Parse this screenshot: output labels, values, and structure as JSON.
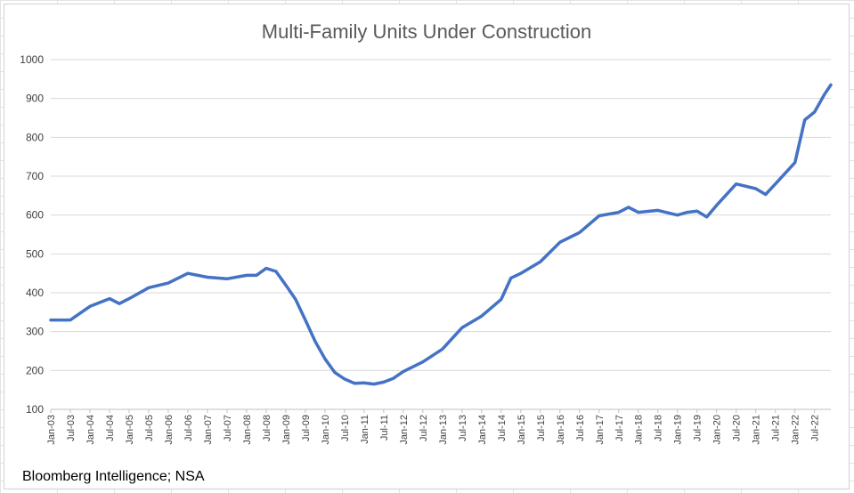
{
  "chart_data": {
    "type": "line",
    "title": "Multi-Family Units Under Construction",
    "xlabel": "",
    "ylabel": "",
    "ylim": [
      100,
      1000
    ],
    "yticks": [
      100,
      200,
      300,
      400,
      500,
      600,
      700,
      800,
      900,
      1000
    ],
    "xlim": [
      "2003-01",
      "2022-12"
    ],
    "xticks": [
      "Jan-03",
      "Jul-03",
      "Jan-04",
      "Jul-04",
      "Jan-05",
      "Jul-05",
      "Jan-06",
      "Jul-06",
      "Jan-07",
      "Jul-07",
      "Jan-08",
      "Jul-08",
      "Jan-09",
      "Jul-09",
      "Jan-10",
      "Jul-10",
      "Jan-11",
      "Jul-11",
      "Jan-12",
      "Jul-12",
      "Jan-13",
      "Jul-13",
      "Jan-14",
      "Jul-14",
      "Jan-15",
      "Jul-15",
      "Jan-16",
      "Jul-16",
      "Jan-17",
      "Jul-17",
      "Jan-18",
      "Jul-18",
      "Jan-19",
      "Jul-19",
      "Jan-20",
      "Jul-20",
      "Jan-21",
      "Jul-21",
      "Jan-22",
      "Jul-22"
    ],
    "grid": true,
    "legend": "none",
    "series": [
      {
        "color": "#4472c4",
        "points": [
          {
            "x": "2003-01",
            "y": 330
          },
          {
            "x": "2003-07",
            "y": 330
          },
          {
            "x": "2004-01",
            "y": 365
          },
          {
            "x": "2004-07",
            "y": 385
          },
          {
            "x": "2004-10",
            "y": 372
          },
          {
            "x": "2005-01",
            "y": 385
          },
          {
            "x": "2005-07",
            "y": 413
          },
          {
            "x": "2006-01",
            "y": 425
          },
          {
            "x": "2006-07",
            "y": 450
          },
          {
            "x": "2007-01",
            "y": 440
          },
          {
            "x": "2007-07",
            "y": 436
          },
          {
            "x": "2008-01",
            "y": 445
          },
          {
            "x": "2008-04",
            "y": 445
          },
          {
            "x": "2008-07",
            "y": 463
          },
          {
            "x": "2008-10",
            "y": 455
          },
          {
            "x": "2009-01",
            "y": 420
          },
          {
            "x": "2009-04",
            "y": 383
          },
          {
            "x": "2009-07",
            "y": 330
          },
          {
            "x": "2009-10",
            "y": 275
          },
          {
            "x": "2010-01",
            "y": 230
          },
          {
            "x": "2010-04",
            "y": 195
          },
          {
            "x": "2010-07",
            "y": 178
          },
          {
            "x": "2010-10",
            "y": 167
          },
          {
            "x": "2011-01",
            "y": 168
          },
          {
            "x": "2011-04",
            "y": 165
          },
          {
            "x": "2011-07",
            "y": 170
          },
          {
            "x": "2011-10",
            "y": 180
          },
          {
            "x": "2012-01",
            "y": 197
          },
          {
            "x": "2012-07",
            "y": 222
          },
          {
            "x": "2013-01",
            "y": 255
          },
          {
            "x": "2013-07",
            "y": 310
          },
          {
            "x": "2014-01",
            "y": 340
          },
          {
            "x": "2014-07",
            "y": 383
          },
          {
            "x": "2014-10",
            "y": 438
          },
          {
            "x": "2015-01",
            "y": 450
          },
          {
            "x": "2015-07",
            "y": 480
          },
          {
            "x": "2016-01",
            "y": 530
          },
          {
            "x": "2016-07",
            "y": 555
          },
          {
            "x": "2017-01",
            "y": 598
          },
          {
            "x": "2017-07",
            "y": 607
          },
          {
            "x": "2017-10",
            "y": 620
          },
          {
            "x": "2018-01",
            "y": 607
          },
          {
            "x": "2018-07",
            "y": 612
          },
          {
            "x": "2019-01",
            "y": 600
          },
          {
            "x": "2019-04",
            "y": 607
          },
          {
            "x": "2019-07",
            "y": 610
          },
          {
            "x": "2019-10",
            "y": 595
          },
          {
            "x": "2020-01",
            "y": 625
          },
          {
            "x": "2020-07",
            "y": 680
          },
          {
            "x": "2021-01",
            "y": 668
          },
          {
            "x": "2021-04",
            "y": 653
          },
          {
            "x": "2021-07",
            "y": 680
          },
          {
            "x": "2022-01",
            "y": 735
          },
          {
            "x": "2022-04",
            "y": 845
          },
          {
            "x": "2022-07",
            "y": 865
          },
          {
            "x": "2022-10",
            "y": 910
          },
          {
            "x": "2022-12",
            "y": 935
          }
        ]
      }
    ],
    "source_note": "Bloomberg Intelligence; NSA"
  }
}
